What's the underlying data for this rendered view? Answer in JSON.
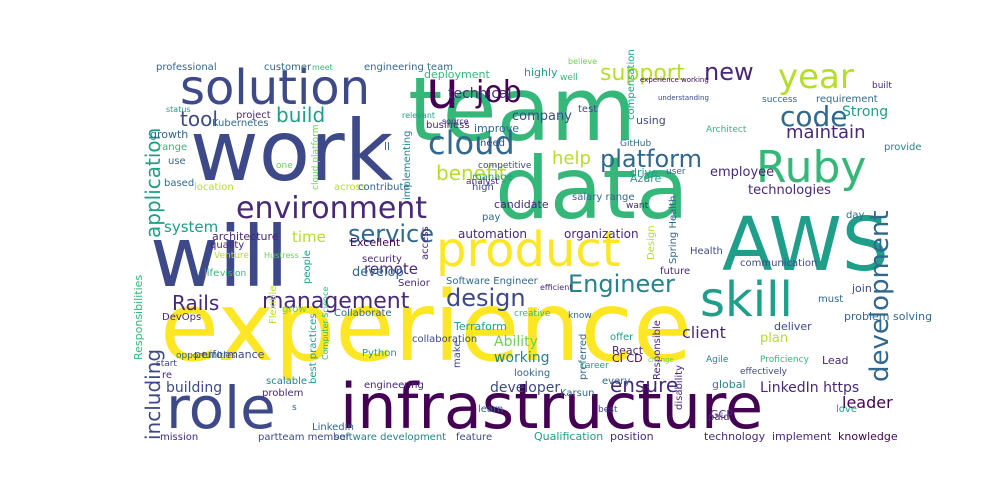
{
  "word_cloud": {
    "background": "#ffffff",
    "palette": [
      "#440154",
      "#482878",
      "#3e4989",
      "#31688e",
      "#26828e",
      "#1f9e89",
      "#35b779",
      "#6ece58",
      "#b5de2b",
      "#fde725"
    ],
    "words": [
      {
        "text": "experience"
      },
      {
        "text": "team"
      },
      {
        "text": "work"
      },
      {
        "text": "data"
      },
      {
        "text": "AWS"
      },
      {
        "text": "will"
      },
      {
        "text": "infrastructure"
      },
      {
        "text": "role"
      },
      {
        "text": "solution"
      },
      {
        "text": "product"
      },
      {
        "text": "skill"
      },
      {
        "text": "Ruby"
      },
      {
        "text": "u"
      },
      {
        "text": "environment"
      },
      {
        "text": "year"
      },
      {
        "text": "cloud"
      },
      {
        "text": "platform"
      },
      {
        "text": "job"
      },
      {
        "text": "development"
      },
      {
        "text": "management"
      },
      {
        "text": "service"
      },
      {
        "text": "design"
      },
      {
        "text": "Engineer"
      },
      {
        "text": "code"
      },
      {
        "text": "including"
      },
      {
        "text": "application"
      },
      {
        "text": "Rails"
      },
      {
        "text": "new"
      },
      {
        "text": "support"
      },
      {
        "text": "build"
      },
      {
        "text": "tool"
      },
      {
        "text": "maintain"
      },
      {
        "text": "benefit"
      },
      {
        "text": "help"
      },
      {
        "text": "ensure"
      },
      {
        "text": "technologies"
      },
      {
        "text": "client"
      },
      {
        "text": "employee"
      },
      {
        "text": "system"
      },
      {
        "text": "automation"
      },
      {
        "text": "remote"
      },
      {
        "text": "developer"
      },
      {
        "text": "working"
      },
      {
        "text": "Ability"
      },
      {
        "text": "building"
      },
      {
        "text": "LinkedIn https"
      },
      {
        "text": "technical"
      },
      {
        "text": "company"
      },
      {
        "text": "Strong"
      },
      {
        "text": "leader"
      },
      {
        "text": "organization"
      },
      {
        "text": "time"
      },
      {
        "text": "develop"
      },
      {
        "text": "Excellent"
      },
      {
        "text": "architecture"
      },
      {
        "text": "performance"
      },
      {
        "text": "Terraform"
      },
      {
        "text": "collaboration"
      },
      {
        "text": "Collaborate"
      },
      {
        "text": "Software Engineer"
      },
      {
        "text": "security"
      },
      {
        "text": "Senior"
      },
      {
        "text": "engineering team"
      },
      {
        "text": "customer"
      },
      {
        "text": "professional"
      },
      {
        "text": "deployment"
      },
      {
        "text": "highly"
      },
      {
        "text": "business"
      },
      {
        "text": "improve"
      },
      {
        "text": "using"
      },
      {
        "text": "compensation"
      },
      {
        "text": "salary range"
      },
      {
        "text": "candidate"
      },
      {
        "text": "pay"
      },
      {
        "text": "manage"
      },
      {
        "text": "high"
      },
      {
        "text": "requirement"
      },
      {
        "text": "success"
      },
      {
        "text": "provide"
      },
      {
        "text": "day"
      },
      {
        "text": "join"
      },
      {
        "text": "problem solving"
      },
      {
        "text": "must"
      },
      {
        "text": "deliver"
      },
      {
        "text": "plan"
      },
      {
        "text": "Lead"
      },
      {
        "text": "Proficiency"
      },
      {
        "text": "Agile"
      },
      {
        "text": "GCP"
      },
      {
        "text": "global"
      },
      {
        "text": "every"
      },
      {
        "text": "preferred"
      },
      {
        "text": "offer"
      },
      {
        "text": "React"
      },
      {
        "text": "CI CD"
      },
      {
        "text": "looking"
      },
      {
        "text": "make"
      },
      {
        "text": "engineering"
      },
      {
        "text": "learn"
      },
      {
        "text": "Qualification"
      },
      {
        "text": "position"
      },
      {
        "text": "technology"
      },
      {
        "text": "implement"
      },
      {
        "text": "knowledge"
      },
      {
        "text": "software development"
      },
      {
        "text": "feature"
      },
      {
        "text": "partteam member"
      },
      {
        "text": "mission"
      },
      {
        "text": "Kubernetes"
      },
      {
        "text": "project"
      },
      {
        "text": "range"
      },
      {
        "text": "growth"
      },
      {
        "text": "use"
      },
      {
        "text": "based"
      },
      {
        "text": "location"
      },
      {
        "text": "across"
      },
      {
        "text": "contribute"
      },
      {
        "text": "implementing"
      },
      {
        "text": "quality"
      },
      {
        "text": "Venture"
      },
      {
        "text": "vision"
      },
      {
        "text": "life"
      },
      {
        "text": "DevOps"
      },
      {
        "text": "Responsibilities"
      },
      {
        "text": "people"
      },
      {
        "text": "grow"
      },
      {
        "text": "Python"
      },
      {
        "text": "best practices"
      },
      {
        "text": "scalable"
      },
      {
        "text": "problem"
      },
      {
        "text": "LinkedIn"
      },
      {
        "text": "communication"
      },
      {
        "text": "Azure"
      },
      {
        "text": "drive"
      },
      {
        "text": "Health"
      },
      {
        "text": "Spring Health"
      },
      {
        "text": "future"
      },
      {
        "text": "Design"
      },
      {
        "text": "Responsible"
      },
      {
        "text": "disability"
      },
      {
        "text": "Karsun"
      },
      {
        "text": "need"
      },
      {
        "text": "competitive"
      },
      {
        "text": "access"
      },
      {
        "text": "Architect"
      },
      {
        "text": "GitHub"
      },
      {
        "text": "want"
      },
      {
        "text": "user"
      },
      {
        "text": "built"
      },
      {
        "text": "test"
      },
      {
        "text": "believe"
      },
      {
        "text": "well"
      },
      {
        "text": "one"
      },
      {
        "text": "meet"
      },
      {
        "text": "source"
      },
      {
        "text": "relevant"
      },
      {
        "text": "status"
      },
      {
        "text": "ll"
      },
      {
        "text": "analyst"
      },
      {
        "text": "efficient"
      },
      {
        "text": "Flexible"
      },
      {
        "text": "creative"
      },
      {
        "text": "paid"
      },
      {
        "text": "best"
      },
      {
        "text": "love"
      },
      {
        "text": "know"
      },
      {
        "text": "career"
      },
      {
        "text": "change"
      },
      {
        "text": "opportunities"
      },
      {
        "text": "start"
      },
      {
        "text": "re"
      },
      {
        "text": "Computer Science"
      },
      {
        "text": "Hustress"
      },
      {
        "text": "cloud platform"
      },
      {
        "text": "experience working"
      },
      {
        "text": "understanding"
      },
      {
        "text": "effectively"
      },
      {
        "text": "s"
      }
    ]
  }
}
